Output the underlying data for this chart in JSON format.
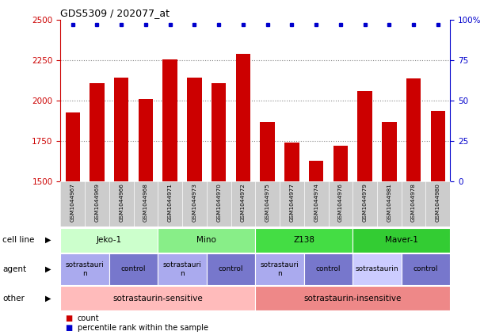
{
  "title": "GDS5309 / 202077_at",
  "samples": [
    "GSM1044967",
    "GSM1044969",
    "GSM1044966",
    "GSM1044968",
    "GSM1044971",
    "GSM1044973",
    "GSM1044970",
    "GSM1044972",
    "GSM1044975",
    "GSM1044977",
    "GSM1044974",
    "GSM1044976",
    "GSM1044979",
    "GSM1044981",
    "GSM1044978",
    "GSM1044980"
  ],
  "counts": [
    1930,
    2110,
    2145,
    2010,
    2255,
    2145,
    2110,
    2290,
    1870,
    1740,
    1630,
    1720,
    2060,
    1870,
    2140,
    1940
  ],
  "percentile_vals": [
    97,
    97,
    97,
    97,
    97,
    97,
    97,
    97,
    97,
    97,
    97,
    97,
    97,
    97,
    97,
    97
  ],
  "ylim_left": [
    1500,
    2500
  ],
  "ylim_right": [
    0,
    100
  ],
  "yticks_left": [
    1500,
    1750,
    2000,
    2250,
    2500
  ],
  "yticks_right": [
    0,
    25,
    50,
    75,
    100
  ],
  "bar_color": "#cc0000",
  "dot_color": "#0000cc",
  "grid_color": "#888888",
  "tick_bg_color": "#cccccc",
  "bg_color": "#ffffff",
  "cell_line_entries": [
    {
      "text": "Jeko-1",
      "start": 0,
      "end": 3,
      "color": "#ccffcc"
    },
    {
      "text": "Mino",
      "start": 4,
      "end": 7,
      "color": "#88ee88"
    },
    {
      "text": "Z138",
      "start": 8,
      "end": 11,
      "color": "#44dd44"
    },
    {
      "text": "Maver-1",
      "start": 12,
      "end": 15,
      "color": "#33cc33"
    }
  ],
  "agent_entries": [
    {
      "text": "sotrastauri\nn",
      "start": 0,
      "end": 1,
      "color": "#aaaaee"
    },
    {
      "text": "control",
      "start": 2,
      "end": 3,
      "color": "#7777cc"
    },
    {
      "text": "sotrastauri\nn",
      "start": 4,
      "end": 5,
      "color": "#aaaaee"
    },
    {
      "text": "control",
      "start": 6,
      "end": 7,
      "color": "#7777cc"
    },
    {
      "text": "sotrastauri\nn",
      "start": 8,
      "end": 9,
      "color": "#aaaaee"
    },
    {
      "text": "control",
      "start": 10,
      "end": 11,
      "color": "#7777cc"
    },
    {
      "text": "sotrastaurin",
      "start": 12,
      "end": 13,
      "color": "#ccccff"
    },
    {
      "text": "control",
      "start": 14,
      "end": 15,
      "color": "#7777cc"
    }
  ],
  "other_entries": [
    {
      "text": "sotrastaurin-sensitive",
      "start": 0,
      "end": 7,
      "color": "#ffbbbb"
    },
    {
      "text": "sotrastaurin-insensitive",
      "start": 8,
      "end": 15,
      "color": "#ee8888"
    }
  ],
  "row_labels": [
    "cell line",
    "agent",
    "other"
  ],
  "legend_items": [
    {
      "color": "#cc0000",
      "label": "count"
    },
    {
      "color": "#0000cc",
      "label": "percentile rank within the sample"
    }
  ]
}
